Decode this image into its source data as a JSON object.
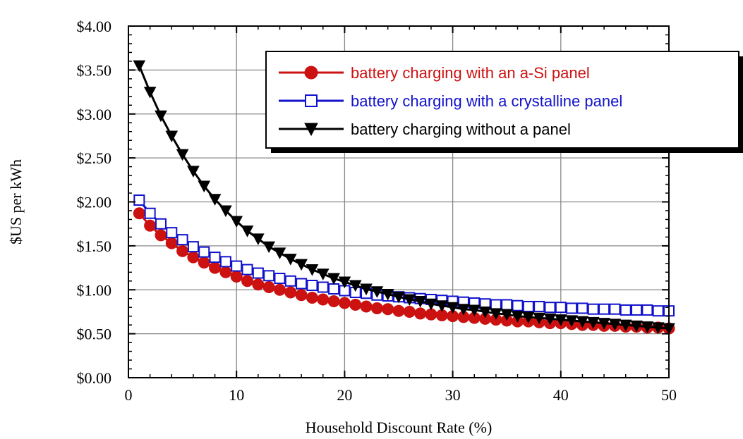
{
  "chart_data": {
    "type": "line",
    "xlabel": "Household Discount Rate (%)",
    "ylabel": "$US per kWh",
    "xlim": [
      0,
      50
    ],
    "ylim": [
      0,
      4
    ],
    "x_ticks": [
      "0",
      "10",
      "20",
      "30",
      "40",
      "50"
    ],
    "y_ticks": [
      "$0.00",
      "$0.50",
      "$1.00",
      "$1.50",
      "$2.00",
      "$2.50",
      "$3.00",
      "$3.50",
      "$4.00"
    ],
    "grid": true,
    "legend_position": "top-right",
    "x": [
      1,
      2,
      3,
      4,
      5,
      6,
      7,
      8,
      9,
      10,
      11,
      12,
      13,
      14,
      15,
      16,
      17,
      18,
      19,
      20,
      21,
      22,
      23,
      24,
      25,
      26,
      27,
      28,
      29,
      30,
      31,
      32,
      33,
      34,
      35,
      36,
      37,
      38,
      39,
      40,
      41,
      42,
      43,
      44,
      45,
      46,
      47,
      48,
      49,
      50
    ],
    "series": [
      {
        "name": "battery charging with an a-Si panel",
        "color": "#cc1111",
        "marker": "filled-circle",
        "values": [
          1.87,
          1.73,
          1.62,
          1.53,
          1.44,
          1.37,
          1.31,
          1.25,
          1.2,
          1.15,
          1.1,
          1.06,
          1.03,
          1.0,
          0.97,
          0.94,
          0.91,
          0.89,
          0.87,
          0.85,
          0.83,
          0.81,
          0.79,
          0.78,
          0.76,
          0.75,
          0.73,
          0.72,
          0.71,
          0.7,
          0.69,
          0.68,
          0.67,
          0.66,
          0.65,
          0.64,
          0.64,
          0.63,
          0.62,
          0.62,
          0.61,
          0.6,
          0.6,
          0.59,
          0.59,
          0.58,
          0.58,
          0.57,
          0.57,
          0.56
        ]
      },
      {
        "name": "battery charging with a crystalline panel",
        "color": "#1111cc",
        "marker": "open-square",
        "values": [
          2.02,
          1.87,
          1.75,
          1.65,
          1.57,
          1.49,
          1.43,
          1.37,
          1.32,
          1.27,
          1.23,
          1.19,
          1.16,
          1.13,
          1.1,
          1.07,
          1.05,
          1.03,
          1.01,
          0.99,
          0.97,
          0.96,
          0.94,
          0.93,
          0.92,
          0.91,
          0.9,
          0.89,
          0.88,
          0.87,
          0.86,
          0.85,
          0.84,
          0.83,
          0.83,
          0.82,
          0.81,
          0.81,
          0.8,
          0.8,
          0.79,
          0.79,
          0.78,
          0.78,
          0.78,
          0.77,
          0.77,
          0.77,
          0.76,
          0.76
        ]
      },
      {
        "name": "battery charging without a panel",
        "color": "#000000",
        "marker": "filled-down-triangle",
        "values": [
          3.55,
          3.25,
          2.98,
          2.75,
          2.54,
          2.35,
          2.18,
          2.03,
          1.9,
          1.78,
          1.67,
          1.58,
          1.49,
          1.42,
          1.35,
          1.29,
          1.23,
          1.18,
          1.13,
          1.09,
          1.05,
          1.01,
          0.98,
          0.95,
          0.92,
          0.89,
          0.87,
          0.84,
          0.82,
          0.8,
          0.78,
          0.77,
          0.75,
          0.73,
          0.72,
          0.7,
          0.69,
          0.68,
          0.67,
          0.66,
          0.65,
          0.64,
          0.63,
          0.62,
          0.61,
          0.6,
          0.59,
          0.58,
          0.57,
          0.56
        ]
      }
    ]
  }
}
